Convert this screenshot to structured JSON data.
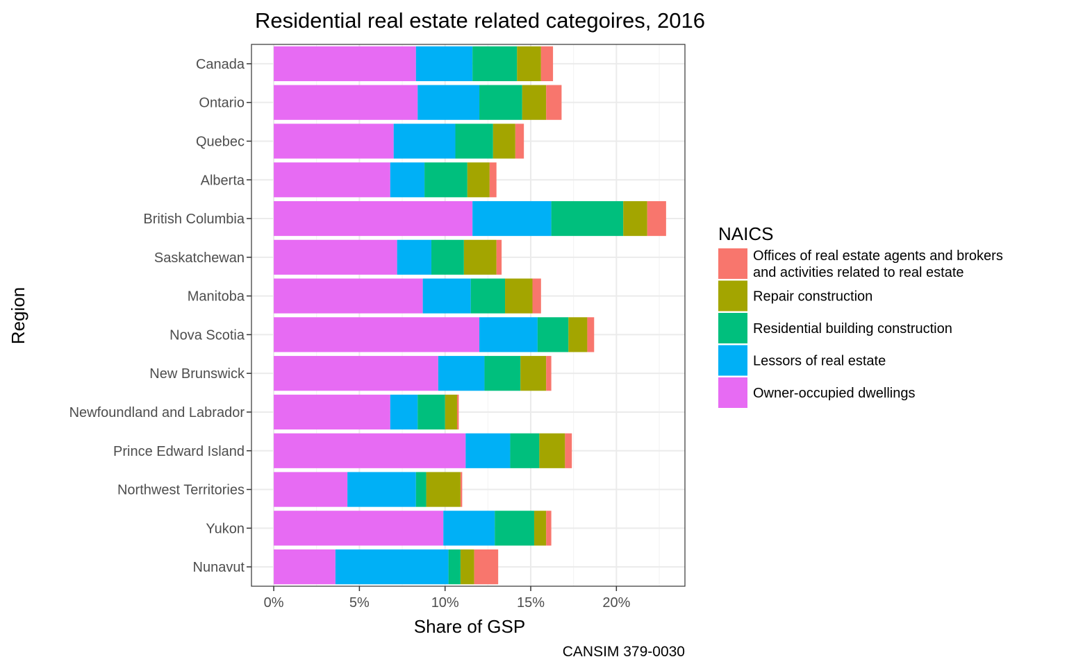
{
  "chart_data": {
    "type": "bar",
    "orientation": "horizontal",
    "stacked": true,
    "title": "Residential real estate related categoires, 2016",
    "xlabel": "Share of GSP",
    "ylabel": "Region",
    "caption": "CANSIM 379-0030",
    "xlim": [
      -1.3,
      24
    ],
    "xticks": [
      0,
      5,
      10,
      15,
      20
    ],
    "xtick_labels": [
      "0%",
      "5%",
      "10%",
      "15%",
      "20%"
    ],
    "grid": true,
    "legend": {
      "title": "NAICS",
      "placement": "right",
      "entries": [
        {
          "label_lines": [
            "Offices of real estate agents and brokers",
            "and activities related to real estate"
          ],
          "color": "#F8766D"
        },
        {
          "label_lines": [
            "Repair construction"
          ],
          "color": "#A3A500"
        },
        {
          "label_lines": [
            "Residential building construction"
          ],
          "color": "#00BF7D"
        },
        {
          "label_lines": [
            "Lessors of real estate"
          ],
          "color": "#00B0F6"
        },
        {
          "label_lines": [
            "Owner-occupied dwellings"
          ],
          "color": "#E76BF3"
        }
      ]
    },
    "categories": [
      "Canada",
      "Ontario",
      "Quebec",
      "Alberta",
      "British Columbia",
      "Saskatchewan",
      "Manitoba",
      "Nova Scotia",
      "New Brunswick",
      "Newfoundland and Labrador",
      "Prince Edward Island",
      "Northwest Territories",
      "Yukon",
      "Nunavut"
    ],
    "series": [
      {
        "name": "Owner-occupied dwellings",
        "color": "#E76BF3",
        "values": [
          8.3,
          8.4,
          7.0,
          6.8,
          11.6,
          7.2,
          8.7,
          12.0,
          9.6,
          6.8,
          11.2,
          4.3,
          9.9,
          3.6
        ]
      },
      {
        "name": "Lessors of real estate",
        "color": "#00B0F6",
        "values": [
          3.3,
          3.6,
          3.6,
          2.0,
          4.6,
          2.0,
          2.8,
          3.4,
          2.7,
          1.6,
          2.6,
          4.0,
          3.0,
          6.6
        ]
      },
      {
        "name": "Residential building construction",
        "color": "#00BF7D",
        "values": [
          2.6,
          2.5,
          2.2,
          2.5,
          4.2,
          1.9,
          2.0,
          1.8,
          2.1,
          1.6,
          1.7,
          0.6,
          2.3,
          0.7
        ]
      },
      {
        "name": "Repair construction",
        "color": "#A3A500",
        "values": [
          1.4,
          1.4,
          1.3,
          1.3,
          1.4,
          1.9,
          1.6,
          1.1,
          1.5,
          0.7,
          1.5,
          2.0,
          0.7,
          0.8
        ]
      },
      {
        "name": "Offices of real estate agents and brokers and activities related to real estate",
        "color": "#F8766D",
        "values": [
          0.7,
          0.9,
          0.5,
          0.4,
          1.1,
          0.3,
          0.5,
          0.4,
          0.3,
          0.1,
          0.4,
          0.1,
          0.3,
          1.4
        ]
      }
    ]
  }
}
